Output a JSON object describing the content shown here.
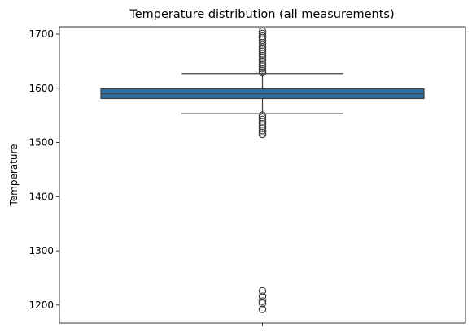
{
  "chart_data": {
    "type": "box",
    "title": "Temperature distribution (all measurements)",
    "xlabel": "",
    "ylabel": "Temperature",
    "ylim": [
      1166.8,
      1713.5
    ],
    "yticks": [
      1200,
      1300,
      1400,
      1500,
      1600,
      1700
    ],
    "xticks": [
      ""
    ],
    "grid": false,
    "box": {
      "q1": 1581,
      "median": 1590,
      "q3": 1599,
      "whisker_low": 1553,
      "whisker_high": 1627,
      "color": "#2f6e9e"
    },
    "outliers_low": [
      1192,
      1203,
      1207,
      1216,
      1226,
      1515,
      1518,
      1522,
      1526,
      1530,
      1534,
      1538,
      1542,
      1546,
      1550
    ],
    "outliers_high": [
      1629,
      1632,
      1636,
      1640,
      1644,
      1648,
      1652,
      1656,
      1660,
      1664,
      1668,
      1672,
      1676,
      1680,
      1684,
      1689,
      1693,
      1696,
      1701,
      1705
    ]
  }
}
